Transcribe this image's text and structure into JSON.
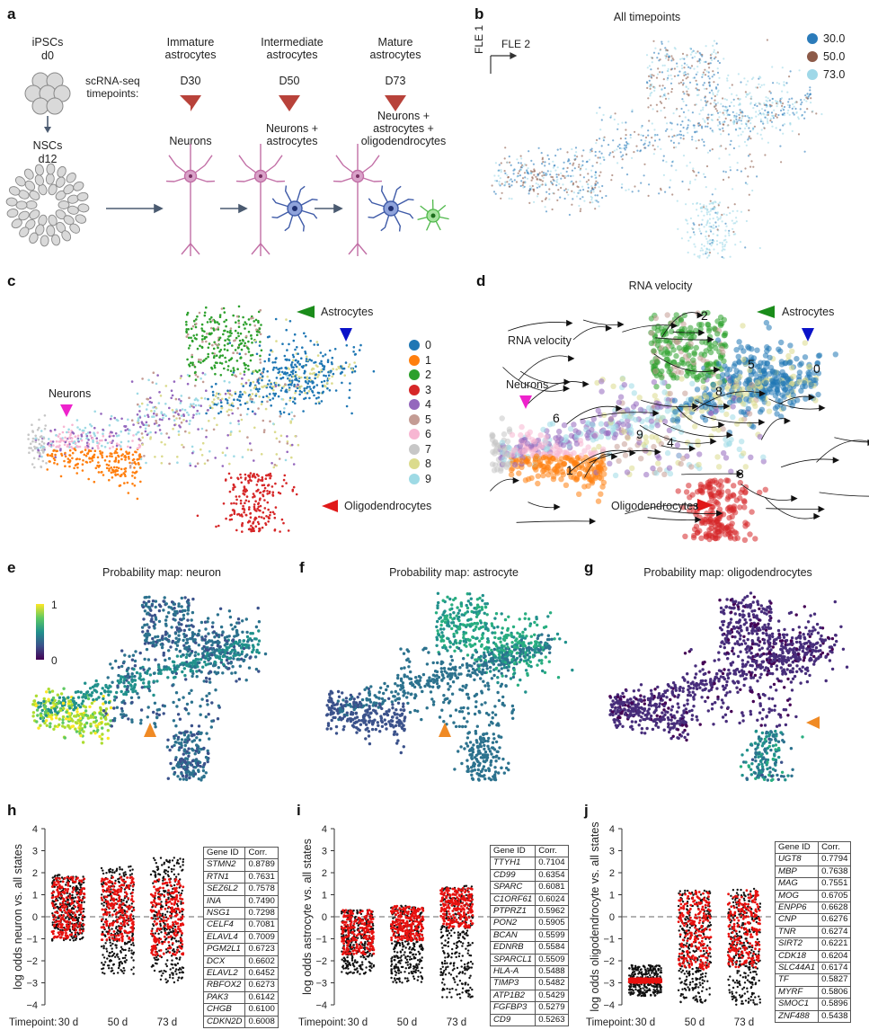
{
  "panels": [
    "a",
    "b",
    "c",
    "d",
    "e",
    "f",
    "g",
    "h",
    "i",
    "j"
  ],
  "panel_a": {
    "ipsc_label": "iPSCs",
    "ipsc_day": "d0",
    "nsc_label": "NSCs",
    "nsc_day": "d12",
    "timepoint_label": "scRNA-seq\ntimepoints:",
    "stages": [
      {
        "title": "Immature\nastrocytes",
        "day": "D30",
        "cells": "Neurons"
      },
      {
        "title": "Intermediate\nastrocytes",
        "day": "D50",
        "cells": "Neurons +\nastrocytes"
      },
      {
        "title": "Mature\nastrocytes",
        "day": "D73",
        "cells": "Neurons +\nastrocytes +\noligodendrocytes"
      }
    ],
    "colors": {
      "arrow": "#b8423a",
      "neuron": "#c26fa6",
      "astro": "#3f5ba8",
      "oligo": "#4fb84a"
    }
  },
  "panel_b": {
    "title": "All timepoints",
    "axis_x": "FLE 2",
    "axis_y": "FLE 1",
    "legend": [
      {
        "label": "30.0",
        "color": "#2b7bba"
      },
      {
        "label": "50.0",
        "color": "#8c5a48"
      },
      {
        "label": "73.0",
        "color": "#9fd8e8"
      }
    ]
  },
  "panel_c": {
    "annotations": {
      "astro": "Astrocytes",
      "neuron": "Neurons",
      "oligo": "Oligodendrocytes"
    },
    "clusters": [
      {
        "label": "0",
        "color": "#1f77b4"
      },
      {
        "label": "1",
        "color": "#ff7f0e"
      },
      {
        "label": "2",
        "color": "#2ca02c"
      },
      {
        "label": "3",
        "color": "#d62728"
      },
      {
        "label": "4",
        "color": "#9467bd"
      },
      {
        "label": "5",
        "color": "#c49c94"
      },
      {
        "label": "6",
        "color": "#f7b6d2"
      },
      {
        "label": "7",
        "color": "#c7c7c7"
      },
      {
        "label": "8",
        "color": "#dbdb8d"
      },
      {
        "label": "9",
        "color": "#9edae5"
      }
    ]
  },
  "panel_d": {
    "title": "RNA velocity",
    "subtitle": "RNA velocity",
    "annotations": {
      "astro": "Astrocytes",
      "neuron": "Neurons",
      "oligo": "Oligodendrocytes"
    },
    "cluster_labels": [
      "0",
      "1",
      "2",
      "3",
      "4",
      "5",
      "6",
      "8",
      "9"
    ]
  },
  "probability_maps": {
    "neuron_title": "Probability map: neuron",
    "astro_title": "Probability map: astrocyte",
    "oligo_title": "Probability map: oligodendrocytes",
    "colorbar_max": "1",
    "colorbar_min": "0"
  },
  "chart_data": [
    {
      "type": "scatter",
      "panel": "h",
      "ylabel": "log odds neuron vs. all states",
      "xlabel": "Timepoint:",
      "categories": [
        "30 d",
        "50 d",
        "73 d"
      ],
      "ylim": [
        -4,
        4
      ],
      "yticks": [
        "4",
        "3",
        "2",
        "1",
        "0",
        "−1",
        "−2",
        "−3",
        "−4"
      ],
      "reference_line": 0,
      "distributions": [
        {
          "category": "30 d",
          "min": -1.1,
          "max": 1.9,
          "red_low": -1.0,
          "red_high": 1.8
        },
        {
          "category": "50 d",
          "min": -2.6,
          "max": 2.3,
          "red_low": -1.1,
          "red_high": 1.8
        },
        {
          "category": "73 d",
          "min": -3.0,
          "max": 2.7,
          "red_low": -1.8,
          "red_high": 1.7
        }
      ],
      "table_header": [
        "Gene ID",
        "Corr."
      ],
      "table": [
        [
          "STMN2",
          "0.8789"
        ],
        [
          "RTN1",
          "0.7631"
        ],
        [
          "SEZ6L2",
          "0.7578"
        ],
        [
          "INA",
          "0.7490"
        ],
        [
          "NSG1",
          "0.7298"
        ],
        [
          "CELF4",
          "0.7081"
        ],
        [
          "ELAVL4",
          "0.7009"
        ],
        [
          "PGM2L1",
          "0.6723"
        ],
        [
          "DCX",
          "0.6602"
        ],
        [
          "ELAVL2",
          "0.6452"
        ],
        [
          "RBFOX2",
          "0.6273"
        ],
        [
          "PAK3",
          "0.6142"
        ],
        [
          "CHGB",
          "0.6100"
        ],
        [
          "CDKN2D",
          "0.6008"
        ]
      ]
    },
    {
      "type": "scatter",
      "panel": "i",
      "ylabel": "log odds astrocyte vs. all states",
      "xlabel": "Timepoint:",
      "categories": [
        "30 d",
        "50 d",
        "73 d"
      ],
      "ylim": [
        -4,
        4
      ],
      "yticks": [
        "4",
        "3",
        "2",
        "1",
        "0",
        "−1",
        "−2",
        "−3",
        "−4"
      ],
      "reference_line": 0,
      "distributions": [
        {
          "category": "30 d",
          "min": -2.6,
          "max": 0.3,
          "red_low": -1.7,
          "red_high": 0.3
        },
        {
          "category": "50 d",
          "min": -3.0,
          "max": 0.5,
          "red_low": -1.1,
          "red_high": 0.5
        },
        {
          "category": "73 d",
          "min": -3.7,
          "max": 1.4,
          "red_low": -0.5,
          "red_high": 1.3
        }
      ],
      "table_header": [
        "Gene ID",
        "Corr."
      ],
      "table": [
        [
          "TTYH1",
          "0.7104"
        ],
        [
          "CD99",
          "0.6354"
        ],
        [
          "SPARC",
          "0.6081"
        ],
        [
          "C1ORF61",
          "0.6024"
        ],
        [
          "PTPRZ1",
          "0.5962"
        ],
        [
          "PON2",
          "0.5905"
        ],
        [
          "BCAN",
          "0.5599"
        ],
        [
          "EDNRB",
          "0.5584"
        ],
        [
          "SPARCL1",
          "0.5509"
        ],
        [
          "HLA-A",
          "0.5488"
        ],
        [
          "TIMP3",
          "0.5482"
        ],
        [
          "ATP1B2",
          "0.5429"
        ],
        [
          "FGFBP3",
          "0.5279"
        ],
        [
          "CD9",
          "0.5263"
        ]
      ]
    },
    {
      "type": "scatter",
      "panel": "j",
      "ylabel": "log odds oligodendrocyte vs. all states",
      "xlabel": "Timepoint:",
      "categories": [
        "30 d",
        "50 d",
        "73 d"
      ],
      "ylim": [
        -4,
        4
      ],
      "yticks": [
        "4",
        "3",
        "2",
        "1",
        "0",
        "−1",
        "−2",
        "−3",
        "−4"
      ],
      "reference_line": 0,
      "distributions": [
        {
          "category": "30 d",
          "min": -3.6,
          "max": -2.2,
          "red_low": -3.0,
          "red_high": -2.8
        },
        {
          "category": "50 d",
          "min": -3.9,
          "max": 1.2,
          "red_low": -2.4,
          "red_high": 1.2
        },
        {
          "category": "73 d",
          "min": -4.0,
          "max": 1.3,
          "red_low": -2.3,
          "red_high": 1.2
        }
      ],
      "table_header": [
        "Gene ID",
        "Corr."
      ],
      "table": [
        [
          "UGT8",
          "0.7794"
        ],
        [
          "MBP",
          "0.7638"
        ],
        [
          "MAG",
          "0.7551"
        ],
        [
          "MOG",
          "0.6705"
        ],
        [
          "ENPP6",
          "0.6628"
        ],
        [
          "CNP",
          "0.6276"
        ],
        [
          "TNR",
          "0.6274"
        ],
        [
          "SIRT2",
          "0.6221"
        ],
        [
          "CDK18",
          "0.6204"
        ],
        [
          "SLC44A1",
          "0.6174"
        ],
        [
          "TF",
          "0.5827"
        ],
        [
          "MYRF",
          "0.5806"
        ],
        [
          "SMOC1",
          "0.5896"
        ],
        [
          "ZNF488",
          "0.5438"
        ]
      ]
    }
  ]
}
